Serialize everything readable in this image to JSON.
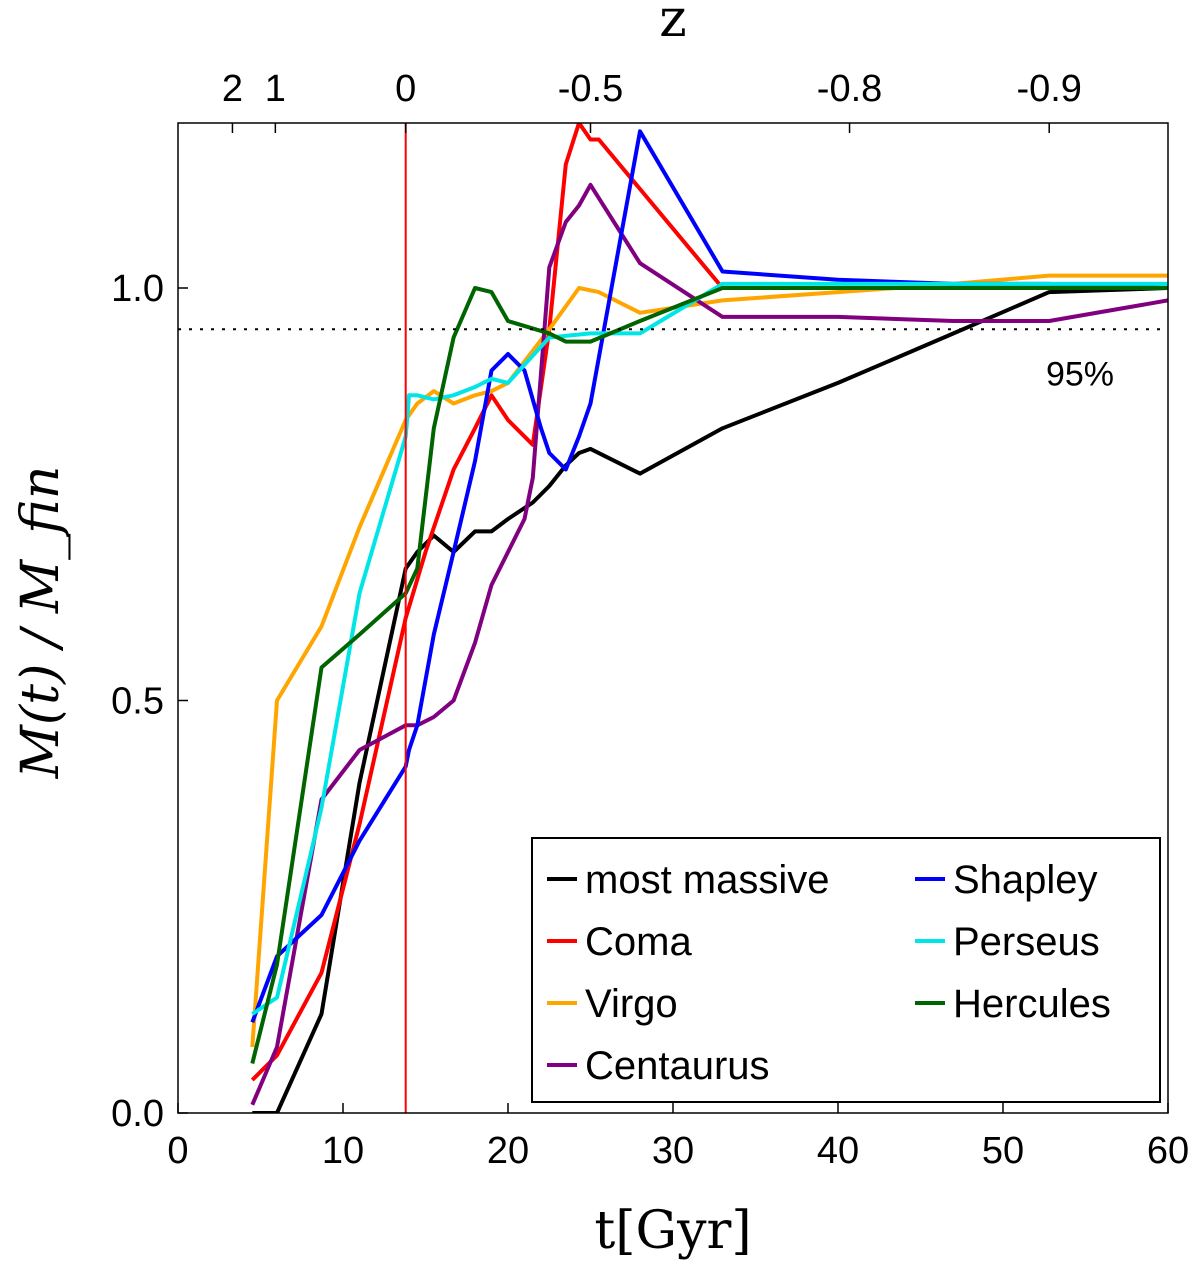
{
  "chart_data": {
    "type": "line",
    "xlabel": "t[Gyr]",
    "ylabel": "M(t) / M_fin",
    "top_xlabel": "z",
    "xlim": [
      0,
      60
    ],
    "ylim": [
      0,
      1.2
    ],
    "x_ticks": [
      0,
      10,
      20,
      30,
      40,
      50,
      60
    ],
    "x_tick_labels": [
      "0",
      "10",
      "20",
      "30",
      "40",
      "50",
      "60"
    ],
    "y_ticks": [
      0.0,
      0.5,
      1.0
    ],
    "y_tick_labels": [
      "0.0",
      "0.5",
      "1.0"
    ],
    "top_ticks": [
      {
        "label": "2",
        "t": 3.3
      },
      {
        "label": "1",
        "t": 5.9
      },
      {
        "label": "0",
        "t": 13.8
      },
      {
        "label": "-0.5",
        "t": 25.0
      },
      {
        "label": "-0.8",
        "t": 40.7
      },
      {
        "label": "-0.9",
        "t": 52.8
      }
    ],
    "present_time_line": {
      "x": 13.8,
      "color": "#ff0000"
    },
    "threshold_line": {
      "y": 0.95,
      "label": "95%"
    },
    "grid": false,
    "legend_position": "bottom-right",
    "legend_columns": 2,
    "series": [
      {
        "name": "most massive",
        "color": "#000000",
        "x": [
          4.5,
          6.0,
          8.7,
          11.0,
          13.8,
          14.5,
          15.5,
          16.7,
          18.0,
          19.0,
          20.0,
          21.5,
          22.5,
          23.5,
          24.3,
          25.0,
          28.0,
          33.0,
          40.0,
          47.0,
          52.8,
          60.0
        ],
        "y": [
          0.0,
          0.0,
          0.12,
          0.4,
          0.66,
          0.68,
          0.7,
          0.68,
          0.705,
          0.705,
          0.72,
          0.74,
          0.76,
          0.785,
          0.8,
          0.805,
          0.775,
          0.83,
          0.885,
          0.945,
          0.995,
          1.0
        ]
      },
      {
        "name": "Coma",
        "color": "#ff0000",
        "x": [
          4.5,
          6.0,
          8.7,
          11.0,
          13.8,
          15.0,
          16.7,
          18.0,
          19.0,
          20.0,
          21.5,
          22.5,
          23.5,
          24.3,
          25.0,
          25.5,
          28.0,
          33.0,
          40.0,
          47.0,
          52.8,
          60.0
        ],
        "y": [
          0.04,
          0.07,
          0.17,
          0.35,
          0.6,
          0.68,
          0.78,
          0.83,
          0.87,
          0.84,
          0.81,
          0.95,
          1.15,
          1.2,
          1.18,
          1.18,
          1.12,
          1.0,
          1.0,
          1.0,
          1.0,
          1.0
        ]
      },
      {
        "name": "Virgo",
        "color": "#ffa500",
        "x": [
          4.5,
          6.0,
          8.7,
          11.0,
          13.8,
          14.5,
          15.5,
          16.7,
          18.0,
          19.0,
          20.0,
          22.5,
          24.3,
          25.5,
          28.0,
          33.0,
          40.0,
          47.0,
          52.8,
          60.0
        ],
        "y": [
          0.08,
          0.5,
          0.59,
          0.71,
          0.84,
          0.86,
          0.875,
          0.86,
          0.87,
          0.875,
          0.885,
          0.95,
          1.0,
          0.995,
          0.97,
          0.985,
          0.995,
          1.005,
          1.015,
          1.015
        ]
      },
      {
        "name": "Centaurus",
        "color": "#800080",
        "x": [
          4.5,
          6.0,
          8.7,
          11.0,
          13.8,
          14.5,
          15.5,
          16.7,
          18.0,
          19.0,
          20.0,
          21.0,
          21.5,
          22.5,
          23.5,
          24.3,
          25.0,
          28.0,
          33.0,
          40.0,
          47.0,
          52.8,
          60.0
        ],
        "y": [
          0.01,
          0.08,
          0.38,
          0.44,
          0.47,
          0.47,
          0.48,
          0.5,
          0.57,
          0.64,
          0.68,
          0.72,
          0.77,
          1.025,
          1.08,
          1.1,
          1.125,
          1.03,
          0.965,
          0.965,
          0.96,
          0.96,
          0.985
        ]
      },
      {
        "name": "Shapley",
        "color": "#0000ff",
        "x": [
          4.5,
          6.0,
          8.7,
          11.0,
          13.8,
          14.0,
          14.5,
          15.5,
          16.7,
          18.0,
          19.0,
          20.0,
          21.0,
          22.0,
          22.5,
          23.5,
          24.3,
          25.0,
          28.0,
          33.0,
          40.0,
          47.0,
          52.8,
          60.0
        ],
        "y": [
          0.11,
          0.19,
          0.24,
          0.33,
          0.42,
          0.44,
          0.47,
          0.58,
          0.68,
          0.79,
          0.9,
          0.92,
          0.9,
          0.83,
          0.8,
          0.78,
          0.82,
          0.86,
          1.19,
          1.02,
          1.01,
          1.005,
          1.005,
          1.0
        ]
      },
      {
        "name": "Perseus",
        "color": "#00e6e6",
        "x": [
          4.5,
          6.0,
          8.7,
          11.0,
          13.8,
          14.0,
          14.5,
          15.5,
          16.7,
          18.0,
          19.0,
          20.0,
          22.5,
          25.0,
          28.0,
          33.0,
          40.0,
          47.0,
          52.8,
          60.0
        ],
        "y": [
          0.12,
          0.14,
          0.37,
          0.63,
          0.82,
          0.87,
          0.87,
          0.865,
          0.87,
          0.88,
          0.89,
          0.885,
          0.94,
          0.945,
          0.945,
          1.005,
          1.005,
          1.005,
          1.005,
          1.005
        ]
      },
      {
        "name": "Hercules",
        "color": "#006400",
        "x": [
          4.5,
          6.0,
          8.7,
          11.0,
          13.8,
          14.5,
          15.5,
          16.7,
          18.0,
          19.0,
          20.0,
          22.5,
          23.5,
          25.0,
          28.0,
          33.0,
          40.0,
          47.0,
          52.8,
          60.0
        ],
        "y": [
          0.06,
          0.18,
          0.54,
          0.58,
          0.63,
          0.66,
          0.83,
          0.94,
          1.0,
          0.995,
          0.96,
          0.945,
          0.935,
          0.935,
          0.96,
          1.0,
          1.0,
          1.0,
          1.0,
          1.0
        ]
      }
    ]
  }
}
